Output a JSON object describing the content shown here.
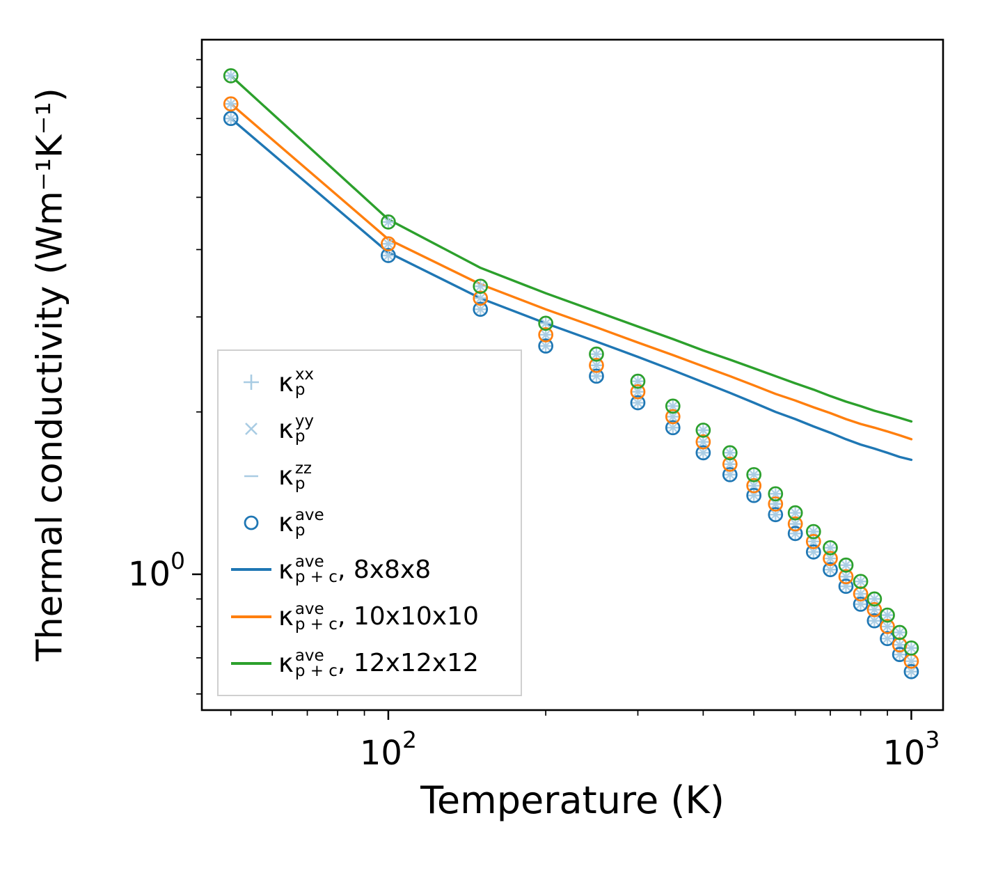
{
  "figure": {
    "xlabel": "Temperature (K)",
    "ylabel": "Thermal conductivity (Wm⁻¹K⁻¹)",
    "x_ticks": [
      {
        "value": 100,
        "base": "10",
        "exp": "2"
      },
      {
        "value": 1000,
        "base": "10",
        "exp": "3"
      }
    ],
    "y_ticks": [
      {
        "value": 1,
        "base": "10",
        "exp": "0"
      }
    ]
  },
  "legend": {
    "items": [
      {
        "marker": "plus",
        "kappa": "κ",
        "sup": "xx",
        "sub": "p",
        "suffix": ""
      },
      {
        "marker": "x",
        "kappa": "κ",
        "sup": "yy",
        "sub": "p",
        "suffix": ""
      },
      {
        "marker": "minus",
        "kappa": "κ",
        "sup": "zz",
        "sub": "p",
        "suffix": ""
      },
      {
        "marker": "circle",
        "kappa": "κ",
        "sup": "ave",
        "sub": "p",
        "suffix": ""
      },
      {
        "marker": "line-blue",
        "kappa": "κ",
        "sup": "ave",
        "sub": "p + c",
        "suffix": ", 8x8x8"
      },
      {
        "marker": "line-orange",
        "kappa": "κ",
        "sup": "ave",
        "sub": "p + c",
        "suffix": ", 10x10x10"
      },
      {
        "marker": "line-green",
        "kappa": "κ",
        "sup": "ave",
        "sub": "p + c",
        "suffix": ", 12x12x12"
      }
    ]
  },
  "chart_data": {
    "type": "line",
    "title": "",
    "xlabel": "Temperature (K)",
    "ylabel": "Thermal conductivity (Wm⁻¹K⁻¹)",
    "xscale": "log",
    "yscale": "log",
    "xlim": [
      44,
      1150
    ],
    "ylim": [
      0.56,
      9.8
    ],
    "grid": false,
    "legend_position": "center-left",
    "colors": {
      "blue": "#1f77b4",
      "orange": "#ff7f0e",
      "green": "#2ca02c",
      "light_marker": "#a9cce3"
    },
    "temperatures": [
      50,
      100,
      150,
      200,
      250,
      300,
      350,
      400,
      450,
      500,
      550,
      600,
      650,
      700,
      750,
      800,
      850,
      900,
      950,
      1000
    ],
    "line_series": [
      {
        "label": "κ_p+c ave, 8x8x8 supercell",
        "color_key": "blue",
        "values": [
          7.0,
          3.95,
          3.25,
          2.92,
          2.7,
          2.53,
          2.39,
          2.27,
          2.17,
          2.08,
          2.0,
          1.94,
          1.88,
          1.83,
          1.78,
          1.74,
          1.71,
          1.68,
          1.65,
          1.63
        ]
      },
      {
        "label": "κ_p+c ave, 10x10x10 supercell",
        "color_key": "orange",
        "values": [
          7.45,
          4.18,
          3.45,
          3.1,
          2.87,
          2.69,
          2.55,
          2.43,
          2.33,
          2.24,
          2.16,
          2.1,
          2.04,
          1.99,
          1.94,
          1.9,
          1.87,
          1.84,
          1.81,
          1.78
        ]
      },
      {
        "label": "κ_p+c ave, 12x12x12 supercell",
        "color_key": "green",
        "values": [
          8.4,
          4.55,
          3.7,
          3.32,
          3.07,
          2.88,
          2.73,
          2.6,
          2.5,
          2.41,
          2.33,
          2.26,
          2.2,
          2.14,
          2.09,
          2.05,
          2.01,
          1.98,
          1.95,
          1.92
        ]
      }
    ],
    "marker_series": [
      {
        "label": "κ_p ave (xx, yy, zz overlap), 8x8x8",
        "color_key": "blue",
        "values": [
          7.0,
          3.9,
          3.1,
          2.65,
          2.33,
          2.08,
          1.87,
          1.68,
          1.53,
          1.4,
          1.29,
          1.19,
          1.1,
          1.02,
          0.95,
          0.88,
          0.82,
          0.76,
          0.71,
          0.66
        ]
      },
      {
        "label": "κ_p ave (xx, yy, zz overlap), 10x10x10",
        "color_key": "orange",
        "values": [
          7.45,
          4.1,
          3.25,
          2.78,
          2.44,
          2.18,
          1.96,
          1.76,
          1.6,
          1.46,
          1.35,
          1.24,
          1.15,
          1.07,
          0.99,
          0.92,
          0.86,
          0.8,
          0.74,
          0.69
        ]
      },
      {
        "label": "κ_p ave (xx, yy, zz overlap), 12x12x12",
        "color_key": "green",
        "values": [
          8.4,
          4.5,
          3.42,
          2.92,
          2.56,
          2.28,
          2.05,
          1.85,
          1.68,
          1.53,
          1.41,
          1.3,
          1.2,
          1.12,
          1.04,
          0.97,
          0.9,
          0.84,
          0.78,
          0.73
        ]
      }
    ]
  }
}
